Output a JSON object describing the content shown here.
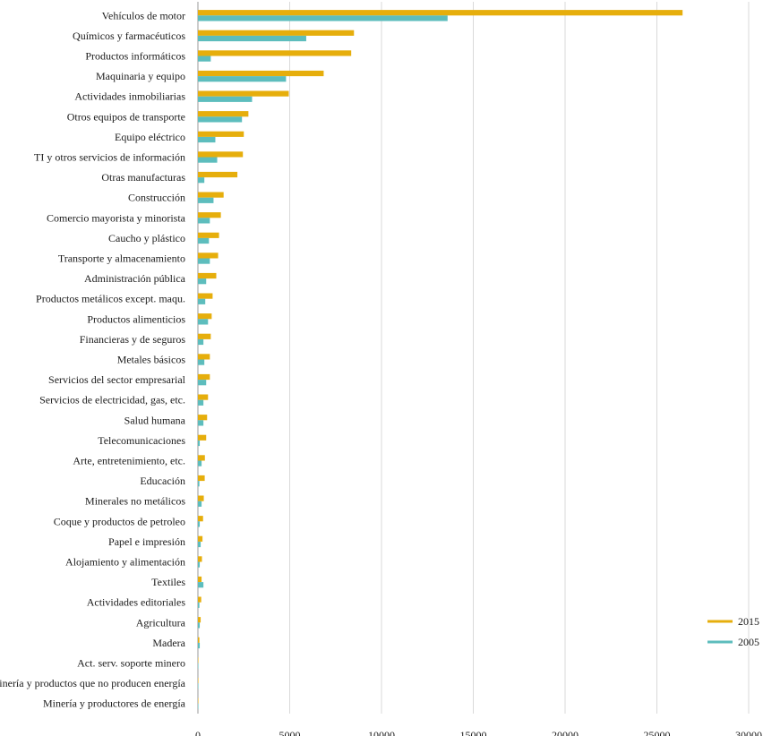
{
  "chart_data": {
    "type": "bar",
    "orientation": "horizontal",
    "title": "",
    "xlabel": "",
    "ylabel": "",
    "xlim": [
      0,
      30000
    ],
    "xticks": [
      "0",
      "5000",
      "10000",
      "15000",
      "20000",
      "25000",
      "30000"
    ],
    "grid": true,
    "legend_position": "bottom-right",
    "colors": {
      "2015": "#E6AE0C",
      "2005": "#5DBDBD"
    },
    "categories": [
      "Vehículos de motor",
      "Químicos y farmacéuticos",
      "Productos informáticos",
      "Maquinaria y equipo",
      "Actividades inmobiliarias",
      "Otros equipos de transporte",
      "Equipo eléctrico",
      "TI y otros servicios de información",
      "Otras manufacturas",
      "Construcción",
      "Comercio mayorista y minorista",
      "Caucho y plástico",
      "Transporte y almacenamiento",
      "Administración pública",
      "Productos metálicos except. maqu.",
      "Productos alimenticios",
      "Financieras y de seguros",
      "Metales básicos",
      "Servicios del sector empresarial",
      "Servicios de electricidad, gas, etc.",
      "Salud humana",
      "Telecomunicaciones",
      "Arte, entretenimiento, etc.",
      "Educación",
      "Minerales no metálicos",
      "Coque y productos de petroleo",
      "Papel e impresión",
      "Alojamiento y alimentación",
      "Textiles",
      "Actividades editoriales",
      "Agricultura",
      "Madera",
      "Act. serv. soporte minero",
      "Minería y productos que no producen energía",
      "Minería y productores de energía"
    ],
    "series": [
      {
        "name": "2015",
        "values": [
          26400,
          8500,
          8350,
          6850,
          4950,
          2750,
          2500,
          2450,
          2150,
          1400,
          1250,
          1150,
          1100,
          1000,
          800,
          750,
          700,
          650,
          650,
          550,
          500,
          450,
          380,
          370,
          320,
          280,
          250,
          220,
          200,
          180,
          150,
          80,
          20,
          10,
          10
        ]
      },
      {
        "name": "2005",
        "values": [
          13600,
          5900,
          700,
          4800,
          2950,
          2400,
          950,
          1050,
          350,
          850,
          650,
          600,
          650,
          450,
          400,
          550,
          300,
          350,
          450,
          300,
          300,
          100,
          200,
          80,
          200,
          100,
          150,
          100,
          300,
          80,
          100,
          100,
          10,
          5,
          5
        ]
      }
    ]
  }
}
